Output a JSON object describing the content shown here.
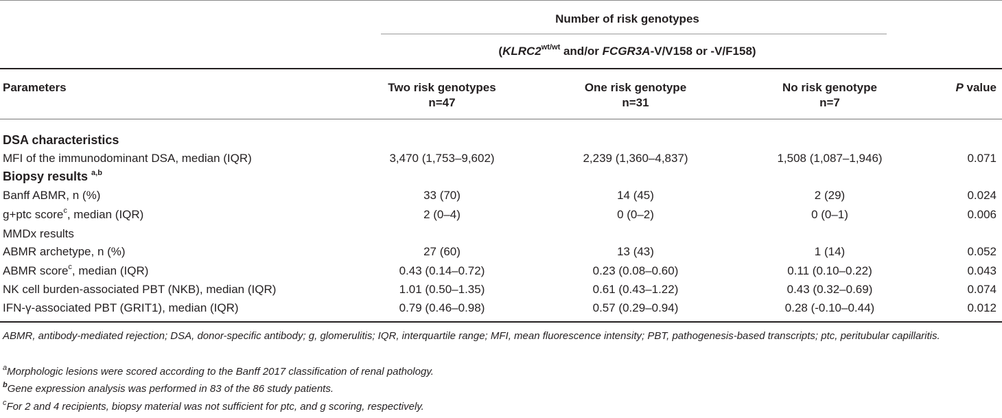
{
  "header": {
    "group_title": "Number of risk genotypes",
    "group_subtitle_parts": {
      "open": "(",
      "gene1": "KLRC2",
      "gene1_sup": "wt/wt",
      "mid": " and/or ",
      "gene2": "FCGR3A",
      "tail": "-V/V158 or -V/F158)"
    },
    "columns": {
      "parameters": "Parameters",
      "two_risk": "Two risk genotypes",
      "two_risk_n": "n=47",
      "one_risk": "One risk genotype",
      "one_risk_n": "n=31",
      "no_risk": "No risk genotype",
      "no_risk_n": "n=7",
      "p_italic": "P",
      "p_rest": " value"
    }
  },
  "sections": {
    "dsa": "DSA characteristics",
    "biopsy": "Biopsy results ",
    "biopsy_sup": "a,b",
    "mmdx": "MMDx results"
  },
  "rows": [
    {
      "label": "MFI of the immunodominant DSA, median (IQR)",
      "label_sup": "",
      "label_tail": "",
      "two": "3,470 (1,753–9,602)",
      "one": "2,239 (1,360–4,837)",
      "none": "1,508 (1,087–1,946)",
      "p": "0.071"
    },
    {
      "label": "Banff ABMR, n (%)",
      "label_sup": "",
      "label_tail": "",
      "two": "33 (70)",
      "one": "14 (45)",
      "none": "2 (29)",
      "p": "0.024"
    },
    {
      "label": "g+ptc score",
      "label_sup": "c",
      "label_tail": ", median (IQR)",
      "two": "2 (0–4)",
      "one": "0 (0–2)",
      "none": "0 (0–1)",
      "p": "0.006"
    },
    {
      "label": "ABMR archetype, n (%)",
      "label_sup": "",
      "label_tail": "",
      "two": "27 (60)",
      "one": "13 (43)",
      "none": "1 (14)",
      "p": "0.052"
    },
    {
      "label": "ABMR score",
      "label_sup": "c",
      "label_tail": ", median (IQR)",
      "two": "0.43 (0.14–0.72)",
      "one": "0.23 (0.08–0.60)",
      "none": "0.11 (0.10–0.22)",
      "p": "0.043"
    },
    {
      "label": "NK cell burden-associated PBT (NKB), median (IQR)",
      "label_sup": "",
      "label_tail": "",
      "two": "1.01 (0.50–1.35)",
      "one": "0.61 (0.43–1.22)",
      "none": "0.43 (0.32–0.69)",
      "p": "0.074"
    },
    {
      "label": "IFN-γ-associated PBT (GRIT1), median (IQR)",
      "label_sup": "",
      "label_tail": "",
      "two": "0.79 (0.46–0.98)",
      "one": "0.57 (0.29–0.94)",
      "none": "0.28 (-0.10–0.44)",
      "p": "0.012"
    }
  ],
  "footnotes": {
    "abbrev": "ABMR, antibody-mediated rejection; DSA, donor-specific antibody; g, glomerulitis; IQR, interquartile range; MFI, mean fluorescence intensity; PBT, pathogenesis-based transcripts; ptc, peritubular capillaritis.",
    "a_mark": "a",
    "a_text": "Morphologic lesions were scored according to the Banff 2017 classification of renal pathology.",
    "b_mark": "b",
    "b_text": "Gene expression analysis was performed in 83 of the 86 study patients.",
    "c_mark": "c",
    "c_text": "For 2 and 4 recipients, biopsy material was not sufficient for ptc, and g scoring, respectively."
  }
}
